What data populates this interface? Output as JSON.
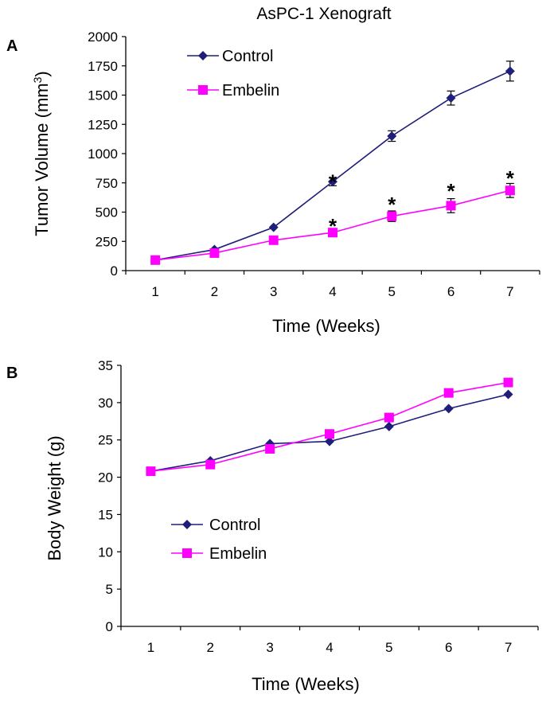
{
  "chart_data": [
    {
      "panel": "A",
      "type": "line",
      "title": "AsPC-1 Xenograft",
      "xlabel": "Time (Weeks)",
      "ylabel": "Tumor Volume (mm",
      "ylabel_sup": "3",
      "ylabel_close": ")",
      "categories": [
        "1",
        "2",
        "3",
        "4",
        "5",
        "6",
        "7"
      ],
      "x": [
        1,
        2,
        3,
        4,
        5,
        6,
        7
      ],
      "ylim": [
        0,
        2000
      ],
      "yticks": [
        0,
        250,
        500,
        750,
        1000,
        1250,
        1500,
        1750,
        2000
      ],
      "legend_position": "top-left",
      "series": [
        {
          "name": "Control",
          "color": "#1f1f7a",
          "marker": "diamond",
          "values": [
            90,
            180,
            370,
            760,
            1150,
            1475,
            1705
          ],
          "errors": [
            0,
            0,
            0,
            35,
            45,
            60,
            85
          ]
        },
        {
          "name": "Embelin",
          "color": "#ff00ff",
          "marker": "square",
          "values": [
            90,
            150,
            260,
            325,
            465,
            555,
            685
          ],
          "errors": [
            0,
            0,
            0,
            35,
            45,
            60,
            60
          ]
        }
      ],
      "annotations": [
        {
          "text": "*",
          "x": 4,
          "y": 780
        },
        {
          "text": "*",
          "x": 4,
          "y": 400
        },
        {
          "text": "*",
          "x": 5,
          "y": 585
        },
        {
          "text": "*",
          "x": 6,
          "y": 700
        },
        {
          "text": "*",
          "x": 7,
          "y": 810
        }
      ]
    },
    {
      "panel": "B",
      "type": "line",
      "title": "",
      "xlabel": "Time (Weeks)",
      "ylabel": "Body Weight (g)",
      "categories": [
        "1",
        "2",
        "3",
        "4",
        "5",
        "6",
        "7"
      ],
      "x": [
        1,
        2,
        3,
        4,
        5,
        6,
        7
      ],
      "ylim": [
        0,
        35
      ],
      "yticks": [
        0,
        5,
        10,
        15,
        20,
        25,
        30,
        35
      ],
      "legend_position": "middle-left",
      "series": [
        {
          "name": "Control",
          "color": "#1f1f7a",
          "marker": "diamond",
          "values": [
            20.8,
            22.2,
            24.5,
            24.8,
            26.8,
            29.2,
            31.1
          ]
        },
        {
          "name": "Embelin",
          "color": "#ff00ff",
          "marker": "square",
          "values": [
            20.8,
            21.7,
            23.8,
            25.8,
            28.0,
            31.3,
            32.7
          ]
        }
      ],
      "annotations": []
    }
  ]
}
